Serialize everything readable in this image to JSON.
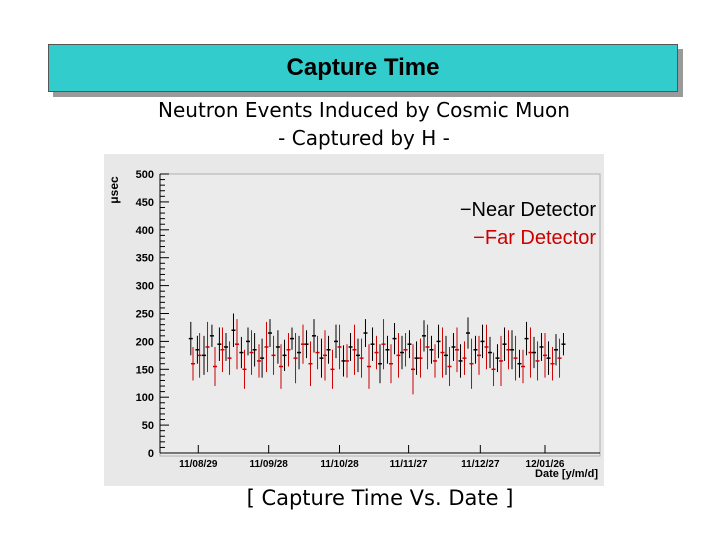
{
  "header": {
    "title": "Capture Time"
  },
  "subtitle_line1": "Neutron Events Induced by Cosmic Muon",
  "subtitle_line2": "- Captured by H -",
  "caption": "[ Capture Time Vs. Date ]",
  "chart_data": {
    "type": "scatter",
    "ylabel": "μsec",
    "xlabel": "Date [y/m/d]",
    "ylim": [
      0,
      500
    ],
    "yticks": [
      0,
      50,
      100,
      150,
      200,
      250,
      300,
      350,
      400,
      450,
      500
    ],
    "xtick_labels": [
      "11/08/29",
      "11/09/28",
      "11/10/28",
      "11/11/27",
      "11/12/27",
      "12/01/26"
    ],
    "xlim": [
      0,
      1
    ],
    "xticks": [
      0.087,
      0.247,
      0.408,
      0.565,
      0.728,
      0.875
    ],
    "legend": {
      "placement": "top-right",
      "entries": [
        {
          "label": "Near Detector",
          "color": "#000000"
        },
        {
          "label": "Far Detector",
          "color": "#cc0000"
        }
      ]
    },
    "series": [
      {
        "name": "Near Detector",
        "color": "#000000",
        "x": [
          0.07,
          0.085,
          0.1,
          0.118,
          0.135,
          0.15,
          0.167,
          0.185,
          0.2,
          0.215,
          0.232,
          0.25,
          0.268,
          0.283,
          0.3,
          0.316,
          0.333,
          0.35,
          0.367,
          0.383,
          0.4,
          0.417,
          0.433,
          0.45,
          0.467,
          0.483,
          0.5,
          0.517,
          0.533,
          0.55,
          0.567,
          0.583,
          0.6,
          0.617,
          0.633,
          0.65,
          0.667,
          0.683,
          0.7,
          0.717,
          0.733,
          0.75,
          0.767,
          0.783,
          0.8,
          0.817,
          0.833,
          0.85,
          0.867,
          0.883,
          0.9,
          0.917
        ],
        "y": [
          205,
          185,
          175,
          210,
          195,
          190,
          220,
          180,
          200,
          185,
          170,
          215,
          190,
          175,
          205,
          180,
          195,
          210,
          170,
          185,
          200,
          165,
          190,
          175,
          215,
          195,
          160,
          185,
          205,
          180,
          195,
          170,
          210,
          185,
          200,
          175,
          190,
          165,
          215,
          185,
          200,
          180,
          170,
          195,
          185,
          160,
          205,
          180,
          190,
          170,
          185,
          195
        ],
        "err": [
          30,
          25,
          35,
          20,
          30,
          25,
          30,
          28,
          25,
          30,
          35,
          25,
          30,
          28,
          20,
          30,
          25,
          30,
          35,
          25,
          30,
          28,
          25,
          30,
          25,
          30,
          35,
          25,
          28,
          30,
          25,
          30,
          28,
          25,
          30,
          35,
          25,
          30,
          28,
          25,
          30,
          28,
          25,
          30,
          35,
          25,
          30,
          28,
          25,
          30,
          28,
          20
        ]
      },
      {
        "name": "Far Detector",
        "color": "#cc0000",
        "x": [
          0.075,
          0.09,
          0.108,
          0.125,
          0.142,
          0.158,
          0.175,
          0.192,
          0.208,
          0.225,
          0.242,
          0.258,
          0.275,
          0.292,
          0.308,
          0.325,
          0.342,
          0.358,
          0.375,
          0.392,
          0.408,
          0.425,
          0.442,
          0.458,
          0.475,
          0.492,
          0.508,
          0.525,
          0.542,
          0.558,
          0.575,
          0.592,
          0.608,
          0.625,
          0.642,
          0.658,
          0.675,
          0.692,
          0.708,
          0.725,
          0.742,
          0.758,
          0.775,
          0.792,
          0.808,
          0.825,
          0.842,
          0.858,
          0.875,
          0.892,
          0.908
        ],
        "y": [
          160,
          175,
          190,
          155,
          185,
          170,
          195,
          150,
          180,
          165,
          190,
          175,
          155,
          185,
          170,
          195,
          160,
          180,
          175,
          150,
          190,
          165,
          185,
          170,
          155,
          180,
          195,
          160,
          175,
          185,
          150,
          170,
          190,
          165,
          180,
          155,
          185,
          170,
          160,
          175,
          190,
          150,
          165,
          185,
          170,
          155,
          180,
          165,
          175,
          160,
          170
        ],
        "err": [
          30,
          40,
          45,
          35,
          40,
          30,
          45,
          35,
          40,
          30,
          45,
          35,
          40,
          30,
          45,
          35,
          40,
          30,
          45,
          35,
          40,
          30,
          45,
          35,
          40,
          30,
          45,
          35,
          40,
          30,
          45,
          35,
          40,
          30,
          45,
          35,
          40,
          30,
          45,
          35,
          40,
          30,
          45,
          35,
          40,
          30,
          45,
          35,
          40,
          30,
          35
        ]
      }
    ]
  }
}
